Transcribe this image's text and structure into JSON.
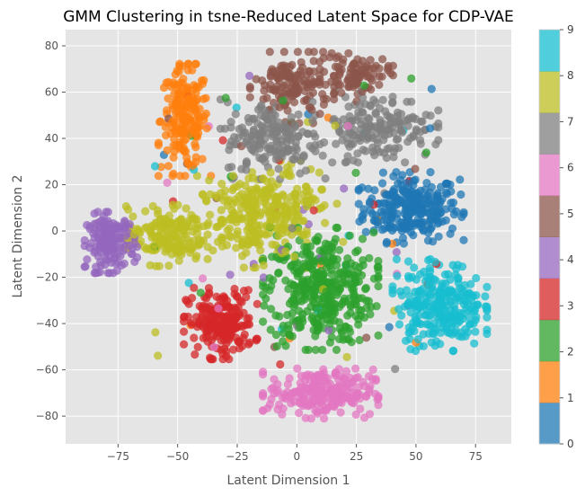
{
  "chart_data": {
    "type": "scatter",
    "title": "GMM Clustering in tsne-Reduced Latent Space for CDP-VAE",
    "xlabel": "Latent Dimension 1",
    "ylabel": "Latent Dimension 2",
    "xlim": [
      -97,
      90
    ],
    "ylim": [
      -92,
      87
    ],
    "xticks": [
      -75,
      -50,
      -25,
      0,
      25,
      50,
      75
    ],
    "yticks": [
      -80,
      -60,
      -40,
      -20,
      0,
      20,
      40,
      60,
      80
    ],
    "grid": true,
    "colorbar": {
      "ticks": [
        0,
        1,
        2,
        3,
        4,
        5,
        6,
        7,
        8,
        9
      ],
      "colors": [
        "#1f77b4",
        "#ff7f0e",
        "#2ca02c",
        "#d62728",
        "#9467bd",
        "#8c564b",
        "#e377c2",
        "#7f7f7f",
        "#bcbd22",
        "#17becf"
      ]
    },
    "clusters": [
      {
        "label": 0,
        "center": [
          48,
          10
        ],
        "spread": [
          10,
          7
        ],
        "count": 260
      },
      {
        "label": 1,
        "center": [
          -47,
          48
        ],
        "spread": [
          5,
          11
        ],
        "count": 190
      },
      {
        "label": 2,
        "center": [
          10,
          -25
        ],
        "spread": [
          11,
          12
        ],
        "count": 380
      },
      {
        "label": 3,
        "center": [
          -32,
          -40
        ],
        "spread": [
          7,
          7
        ],
        "count": 210
      },
      {
        "label": 4,
        "center": [
          -78,
          -5
        ],
        "spread": [
          5,
          6
        ],
        "count": 160
      },
      {
        "label": 5,
        "center": [
          -2,
          62
        ],
        "spread": [
          8,
          7
        ],
        "count": 140
      },
      {
        "label": 5,
        "center": [
          25,
          68
        ],
        "spread": [
          7,
          4
        ],
        "count": 90
      },
      {
        "label": 6,
        "center": [
          10,
          -70
        ],
        "spread": [
          11,
          5
        ],
        "count": 230
      },
      {
        "label": 7,
        "center": [
          -10,
          40
        ],
        "spread": [
          10,
          8
        ],
        "count": 170
      },
      {
        "label": 7,
        "center": [
          33,
          45
        ],
        "spread": [
          12,
          7
        ],
        "count": 170
      },
      {
        "label": 8,
        "center": [
          -20,
          4
        ],
        "spread": [
          11,
          9
        ],
        "count": 200
      },
      {
        "label": 8,
        "center": [
          -55,
          -2
        ],
        "spread": [
          8,
          6
        ],
        "count": 160
      },
      {
        "label": 8,
        "center": [
          -5,
          15
        ],
        "spread": [
          10,
          7
        ],
        "count": 100
      },
      {
        "label": 9,
        "center": [
          60,
          -32
        ],
        "spread": [
          9,
          9
        ],
        "count": 260
      }
    ]
  }
}
